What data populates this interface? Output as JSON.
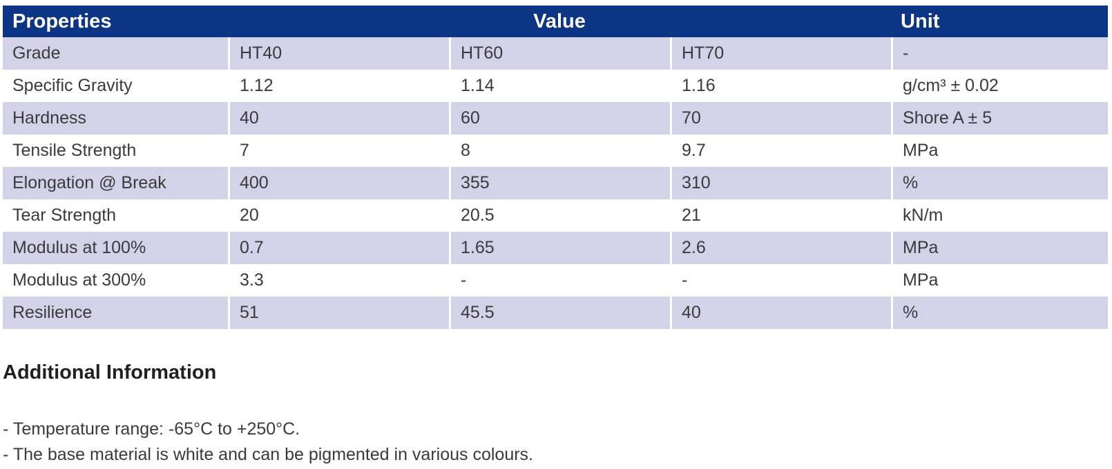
{
  "table": {
    "headers": {
      "properties": "Properties",
      "value": "Value",
      "unit": "Unit"
    },
    "rows": [
      {
        "property": "Grade",
        "ht40": "HT40",
        "ht60": "HT60",
        "ht70": "HT70",
        "unit": "-"
      },
      {
        "property": "Specific Gravity",
        "ht40": "1.12",
        "ht60": "1.14",
        "ht70": "1.16",
        "unit": "g/cm³ ± 0.02"
      },
      {
        "property": "Hardness",
        "ht40": "40",
        "ht60": "60",
        "ht70": "70",
        "unit": "Shore A ± 5"
      },
      {
        "property": "Tensile Strength",
        "ht40": "7",
        "ht60": "8",
        "ht70": "9.7",
        "unit": "MPa"
      },
      {
        "property": "Elongation @ Break",
        "ht40": "400",
        "ht60": "355",
        "ht70": "310",
        "unit": "%"
      },
      {
        "property": "Tear Strength",
        "ht40": "20",
        "ht60": "20.5",
        "ht70": "21",
        "unit": "kN/m"
      },
      {
        "property": "Modulus at 100%",
        "ht40": "0.7",
        "ht60": "1.65",
        "ht70": "2.6",
        "unit": "MPa"
      },
      {
        "property": "Modulus at 300%",
        "ht40": "3.3",
        "ht60": "-",
        "ht70": "-",
        "unit": "MPa"
      },
      {
        "property": "Resilience",
        "ht40": "51",
        "ht60": "45.5",
        "ht70": "40",
        "unit": "%"
      }
    ]
  },
  "additional_info": {
    "title": "Additional Information",
    "lines": [
      "- Temperature range: -65°C to +250°C.",
      "- The base material is white and can be pigmented in various colours."
    ]
  },
  "colors": {
    "header_bg": "#0d3585",
    "shaded_row_bg": "#d4d2e9",
    "plain_row_bg": "#ffffff"
  }
}
